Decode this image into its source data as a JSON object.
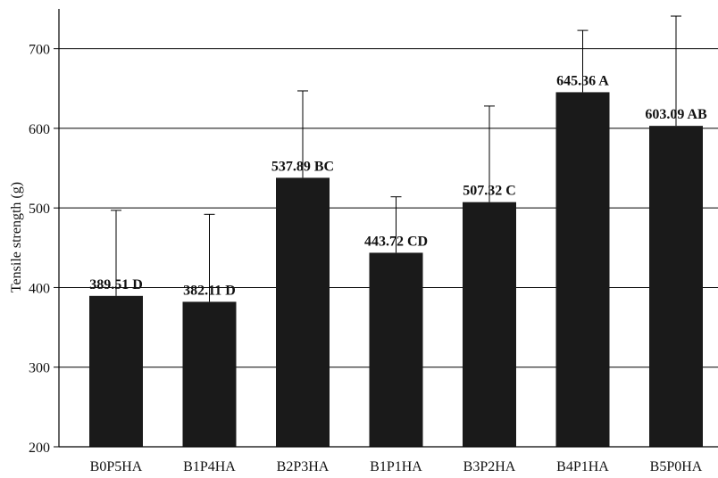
{
  "chart_data": {
    "type": "bar",
    "title": "",
    "xlabel": "",
    "ylabel": "Tensile strength (g)",
    "categories": [
      "B0P5HA",
      "B1P4HA",
      "B2P3HA",
      "B1P1HA",
      "B3P2HA",
      "B4P1HA",
      "B5P0HA"
    ],
    "values": [
      389.51,
      382.11,
      537.89,
      443.72,
      507.32,
      645.36,
      603.09
    ],
    "error_upper": [
      497,
      492,
      647,
      514,
      628,
      723,
      741
    ],
    "data_labels": [
      "389.51 D",
      "382.11 D",
      "537.89 BC",
      "443.72 CD",
      "507.32 C",
      "645.36 A",
      "603.09 AB"
    ],
    "ylim": [
      200,
      750
    ],
    "yticks": [
      200,
      300,
      400,
      500,
      600,
      700
    ],
    "ytick_labels": [
      "200",
      "300",
      "400",
      "500",
      "600",
      "700"
    ],
    "grid": true,
    "bar_color": "#1a1a1a",
    "legend": "none"
  }
}
